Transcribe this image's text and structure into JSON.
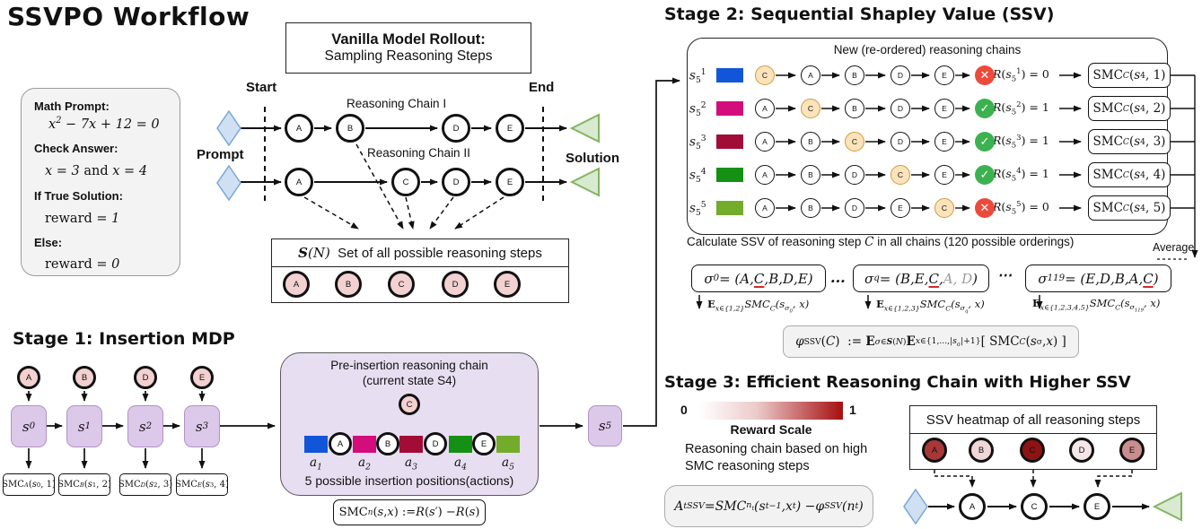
{
  "title": "SSVPO Workflow",
  "math_card": {
    "l1": "Math Prompt:",
    "m1": "<i>x</i><sup>2</sup> − 7<i>x</i> + 12 = 0",
    "l2": "Check Answer:",
    "m2": "<i>x</i> = 3 <span class='rm'>and</span> <i>x</i> = 4",
    "l3": "If True Solution:",
    "m3": "<span class='rm'>reward</span> = 1",
    "l4": "Else:",
    "m4": "<span class='rm'>reward</span> = 0"
  },
  "rollout": {
    "box_title": "Vanilla Model Rollout:",
    "box_subtitle": "Sampling Reasoning Steps",
    "start_label": "Start",
    "end_label": "End",
    "prompt_label": "Prompt",
    "solution_label": "Solution",
    "chain1_label": "Reasoning Chain I",
    "chain2_label": "Reasoning Chain II",
    "chain1": [
      "A",
      "B",
      "D",
      "E"
    ],
    "chain2": [
      "A",
      "C",
      "D",
      "E"
    ]
  },
  "step_set": {
    "header": "<span class='m'><span class='frak'>S</span>(<span class='scr'>N</span>)</span>&nbsp; Set of all possible reasoning steps",
    "steps": [
      "A",
      "B",
      "C",
      "D",
      "E"
    ]
  },
  "stage1": {
    "heading": "Stage 1: Insertion MDP",
    "columns": [
      {
        "node": "A",
        "state": "<i>s</i><sub>0</sub>",
        "smc": "SMC<sub><i>A</i></sub>(<i>s</i><sub>0</sub>, 1)"
      },
      {
        "node": "B",
        "state": "<i>s</i><sub>1</sub>",
        "smc": "SMC<sub><i>B</i></sub>(<i>s</i><sub>1</sub>, 2)"
      },
      {
        "node": "D",
        "state": "<i>s</i><sub>2</sub>",
        "smc": "SMC<sub><i>D</i></sub>(<i>s</i><sub>2</sub>, 3)"
      },
      {
        "node": "E",
        "state": "<i>s</i><sub>3</sub>",
        "smc": "SMC<sub><i>E</i></sub>(<i>s</i><sub>3</sub>, 4)"
      }
    ]
  },
  "insertion_box": {
    "title1": "Pre-insertion reasoning chain",
    "title2": "(current state S4)",
    "node": "C",
    "chain_nodes": [
      "A",
      "B",
      "D",
      "E"
    ],
    "action_labels": [
      "<i>a</i><sub>1</sub>",
      "<i>a</i><sub>2</sub>",
      "<i>a</i><sub>3</sub>",
      "<i>a</i><sub>4</sub>",
      "<i>a</i><sub>5</sub>"
    ],
    "action_colors": [
      "#1156d8",
      "#d30d7c",
      "#a10d36",
      "#149114",
      "#72ac2a"
    ],
    "caption": "5 possible insertion positions(actions)",
    "smc_formula": "SMC<sub><i>n</i></sub>(<i>s</i>, <i>x</i>) := <span class='scr'>R</span>(<i>s</i>′) − <span class='scr'>R</span>(<i>s</i>)",
    "s5_label": "<i>s</i><sub>5</sub>"
  },
  "stage2": {
    "heading": "Stage 2: Sequential Shapley Value (SSV)",
    "box_header": "New (re-ordered) reasoning chains",
    "check_glyph": "✓",
    "cross_glyph": "✕",
    "rows": [
      {
        "label": "<i>s</i><sub>5</sub><sup>1</sup>",
        "color": "#1156d8",
        "chain": [
          "C",
          "A",
          "B",
          "D",
          "E"
        ],
        "c_index": 0,
        "success": false,
        "reward": "<span class='scr'>R</span>(<i>s</i><sub>5</sub><sup>1</sup>) = 0",
        "smc": "SMC<sub><i>C</i></sub>(<i>s</i><sub>4</sub>, 1)"
      },
      {
        "label": "<i>s</i><sub>5</sub><sup>2</sup>",
        "color": "#d30d7c",
        "chain": [
          "A",
          "C",
          "B",
          "D",
          "E"
        ],
        "c_index": 1,
        "success": true,
        "reward": "<span class='scr'>R</span>(<i>s</i><sub>5</sub><sup>2</sup>) = 1",
        "smc": "SMC<sub><i>C</i></sub>(<i>s</i><sub>4</sub>, 2)"
      },
      {
        "label": "<i>s</i><sub>5</sub><sup>3</sup>",
        "color": "#a10d36",
        "chain": [
          "A",
          "B",
          "C",
          "D",
          "E"
        ],
        "c_index": 2,
        "success": true,
        "reward": "<span class='scr'>R</span>(<i>s</i><sub>5</sub><sup>3</sup>) = 1",
        "smc": "SMC<sub><i>C</i></sub>(<i>s</i><sub>4</sub>, 3)"
      },
      {
        "label": "<i>s</i><sub>5</sub><sup>4</sup>",
        "color": "#149114",
        "chain": [
          "A",
          "B",
          "D",
          "C",
          "E"
        ],
        "c_index": 3,
        "success": true,
        "reward": "<span class='scr'>R</span>(<i>s</i><sub>5</sub><sup>4</sup>) = 1",
        "smc": "SMC<sub><i>C</i></sub>(<i>s</i><sub>4</sub>, 4)"
      },
      {
        "label": "<i>s</i><sub>5</sub><sup>5</sup>",
        "color": "#72ac2a",
        "chain": [
          "A",
          "B",
          "D",
          "E",
          "C"
        ],
        "c_index": 4,
        "success": false,
        "reward": "<span class='scr'>R</span>(<i>s</i><sub>5</sub><sup>5</sup>) = 0",
        "smc": "SMC<sub><i>C</i></sub>(<i>s</i><sub>4</sub>, 5)"
      }
    ],
    "calc_caption": "Calculate SSV of reasoning step <i class='m'>C</i> in all chains (120 possible orderings)",
    "orderings": [
      {
        "perm": "<i>σ</i><sub>0</sub> = (<i>A</i>, <u class='rc'><i>C</i></u>, <i>B</i>, <i>D</i>, <i>E</i>)",
        "expect": "<span class='bb'>E</span><sub><i>x</i>∈{1,2}</sub>SMC<sub><i>C</i></sub>(<i>s</i><sub>σ<sub>0</sub></sub>, <i>x</i>)"
      },
      {
        "perm": "<i>σ</i><sub>q</sub> = (<i>B</i>, <i>E</i>, <u class='rc'><i>C</i></u>, <span class='gray'><i>A</i>, <i>D</i></span>)",
        "expect": "<span class='bb'>E</span><sub><i>x</i>∈{1,2,3}</sub>SMC<sub><i>C</i></sub>(<i>s</i><sub>σ<sub>q</sub></sub>, <i>x</i>)"
      },
      {
        "perm": "<i>σ</i><sub>119</sub> = (<i>E</i>, <i>D</i>, <i>B</i>, <i>A</i>, <u class='rc'><i>C</i></u>)",
        "expect": "<span class='bb'>E</span><sub><i>x</i>∈{1,2,3,4,5}</sub>SMC<sub><i>C</i></sub>(<i>s</i><sub>σ<sub>119</sub></sub>, <i>x</i>)"
      }
    ],
    "dots1": "...",
    "dots2": "⋯",
    "average_label": "Average",
    "ssv_formula": "<i>φ</i><sub>SSV</sub>(<i>C</i>) &nbsp;:=&nbsp; <span class='bb'>E</span><sub><i>σ</i>∈<span class='frak'>S</span>(<span class='scr'>N</span>)</sub> <span class='bb'>E</span><sub><i>x</i>∈{1,...,|<i>s</i><sub>σ</sub>|+1}</sub> [ SMC<sub><i>C</i></sub>(<i>s</i><sub>σ</sub>, <i>x</i>) ]"
  },
  "stage3": {
    "heading": "Stage 3: Efficient Reasoning Chain with Higher SSV",
    "scale_min": "0",
    "scale_max": "1",
    "scale_label": "Reward Scale",
    "description": "Reasoning chain based on high<br>SMC reasoning steps",
    "advantage_formula": "<i>A</i><sub>t</sub><sup>SSV</sup> = <i>SMC</i><sub>n<sub>t</sub></sub>(<i>s</i><sub>t−1</sub>, <i>x</i><sub>t</sub>) − <i>φ</i><sub>SSV</sub>(<i>n</i><sub>t</sub>)",
    "heatmap_header": "SSV heatmap of all reasoning steps",
    "heatmap_nodes": [
      {
        "label": "A",
        "color": "#a93737"
      },
      {
        "label": "B",
        "color": "#efd7d7"
      },
      {
        "label": "C",
        "color": "#8e1313"
      },
      {
        "label": "D",
        "color": "#f6e7e7"
      },
      {
        "label": "E",
        "color": "#cb8d8d"
      }
    ],
    "chain_nodes": [
      "A",
      "C",
      "E"
    ]
  }
}
